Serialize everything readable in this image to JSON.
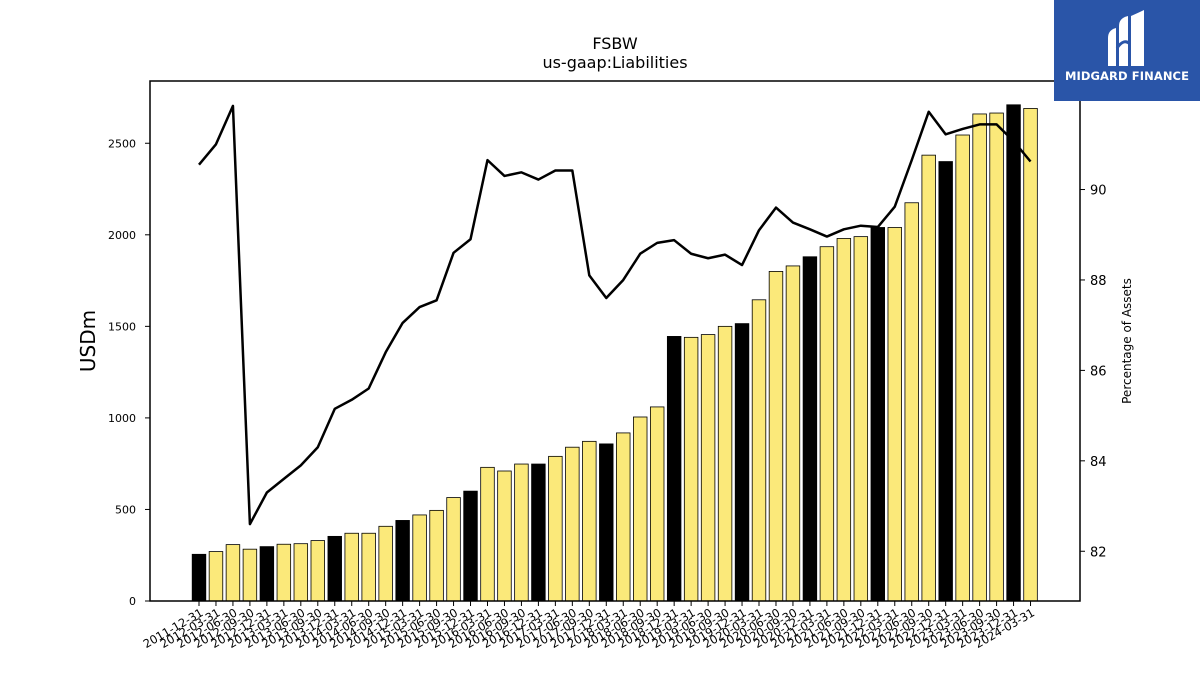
{
  "chart_data": {
    "type": "bar",
    "title": "FSBW",
    "subtitle": "us-gaap:Liabilities",
    "ylabel": "USDm",
    "y2label": "Percentage of Assets",
    "ylim": [
      0,
      2840
    ],
    "y2lim": [
      80.9,
      92.4
    ],
    "yticks": [
      0,
      500,
      1000,
      1500,
      2000,
      2500
    ],
    "y2ticks": [
      82,
      84,
      86,
      88,
      90
    ],
    "grid": false,
    "colors": {
      "bar_default": "#fbe97a",
      "bar_highlight": "#000000",
      "bar_edge": "#000000",
      "line": "#000000"
    },
    "categories": [
      "2011-12-31",
      "2012-03-31",
      "2012-06-30",
      "2012-09-30",
      "2012-12-31",
      "2013-03-31",
      "2013-06-30",
      "2013-09-30",
      "2013-12-31",
      "2014-03-31",
      "2014-06-30",
      "2014-09-30",
      "2014-12-31",
      "2015-03-31",
      "2015-06-30",
      "2015-09-30",
      "2015-12-31",
      "2016-03-31",
      "2016-06-30",
      "2016-09-30",
      "2016-12-31",
      "2017-03-31",
      "2017-06-30",
      "2017-09-30",
      "2017-12-31",
      "2018-03-31",
      "2018-06-30",
      "2018-09-30",
      "2018-12-31",
      "2019-03-31",
      "2019-06-30",
      "2019-09-30",
      "2019-12-31",
      "2020-03-31",
      "2020-06-30",
      "2020-09-30",
      "2020-12-31",
      "2021-03-31",
      "2021-06-30",
      "2021-09-30",
      "2021-12-31",
      "2022-03-31",
      "2022-06-30",
      "2022-09-30",
      "2022-12-31",
      "2023-03-31",
      "2023-06-30",
      "2023-09-30",
      "2023-12-31",
      "2024-03-31"
    ],
    "series": [
      {
        "kind": "bar",
        "values": [
          255,
          270,
          308,
          283,
          297,
          310,
          313,
          330,
          353,
          370,
          370,
          408,
          440,
          470,
          495,
          565,
          600,
          730,
          710,
          748,
          748,
          790,
          840,
          872,
          858,
          918,
          1005,
          1060,
          1445,
          1440,
          1455,
          1500,
          1515,
          1645,
          1800,
          1830,
          1880,
          1935,
          1980,
          1990,
          2040,
          2040,
          2175,
          2435,
          2400,
          2545,
          2660,
          2665,
          2710,
          2690
        ],
        "highlight_every_4th_from": 0
      },
      {
        "kind": "line",
        "axis": "right",
        "values": [
          90.55,
          91.0,
          91.85,
          82.6,
          83.3,
          83.6,
          83.9,
          84.3,
          85.15,
          85.35,
          85.6,
          86.4,
          87.05,
          87.4,
          87.55,
          88.6,
          88.9,
          90.65,
          90.3,
          90.38,
          90.22,
          90.42,
          90.42,
          88.1,
          87.6,
          88.0,
          88.58,
          88.82,
          88.88,
          88.58,
          88.48,
          88.56,
          88.33,
          89.1,
          89.6,
          89.27,
          89.12,
          88.96,
          89.12,
          89.2,
          89.17,
          89.62,
          90.65,
          91.72,
          91.22,
          91.34,
          91.44,
          91.44,
          91.07,
          90.62
        ]
      }
    ]
  },
  "logo": {
    "text": "MIDGARD FINANCE",
    "color": "#2a55a8"
  }
}
